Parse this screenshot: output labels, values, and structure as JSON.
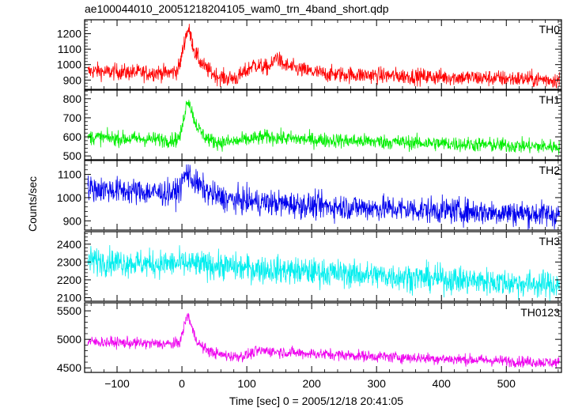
{
  "chart_data": {
    "type": "line",
    "title": "ae100044010_20051218204105_wam0_trn_4band_short.qdp",
    "xlabel": "Time [sec] 0 = 2005/12/18 20:41:05",
    "ylabel": "Counts/sec",
    "xlim": [
      -150,
      585
    ],
    "x_ticks": [
      -100,
      0,
      100,
      200,
      300,
      400,
      500
    ],
    "panels": [
      {
        "name": "TH0",
        "color": "#ff0000",
        "ylim": [
          840,
          1290
        ],
        "y_ticks": [
          900,
          1000,
          1100,
          1200
        ],
        "series": {
          "x": [
            -145,
            -130,
            -115,
            -100,
            -85,
            -70,
            -55,
            -40,
            -25,
            -15,
            -8,
            -3,
            2,
            6,
            10,
            15,
            20,
            28,
            36,
            45,
            55,
            70,
            85,
            100,
            110,
            120,
            130,
            140,
            145,
            155,
            170,
            190,
            220,
            260,
            300,
            350,
            400,
            450,
            500,
            550,
            580
          ],
          "values": [
            955,
            960,
            950,
            955,
            950,
            950,
            945,
            950,
            945,
            950,
            960,
            1000,
            1110,
            1190,
            1230,
            1160,
            1080,
            1020,
            980,
            950,
            925,
            910,
            915,
            960,
            1000,
            990,
            980,
            1000,
            1060,
            1000,
            980,
            960,
            940,
            935,
            930,
            925,
            920,
            915,
            910,
            905,
            900
          ],
          "noise": 38
        }
      },
      {
        "name": "TH1",
        "color": "#00ee00",
        "ylim": [
          480,
          845
        ],
        "y_ticks": [
          500,
          600,
          700,
          800
        ],
        "series": {
          "x": [
            -145,
            -120,
            -90,
            -60,
            -30,
            -10,
            -3,
            2,
            6,
            10,
            14,
            20,
            28,
            36,
            45,
            60,
            80,
            100,
            130,
            150,
            170,
            200,
            250,
            300,
            350,
            400,
            450,
            500,
            550,
            580
          ],
          "values": [
            600,
            595,
            590,
            590,
            585,
            585,
            600,
            680,
            760,
            800,
            750,
            680,
            630,
            600,
            580,
            570,
            575,
            585,
            600,
            595,
            590,
            585,
            580,
            575,
            570,
            565,
            560,
            555,
            550,
            548
          ],
          "noise": 28
        }
      },
      {
        "name": "TH2",
        "color": "#0000ee",
        "ylim": [
          860,
          1160
        ],
        "y_ticks": [
          900,
          1000,
          1100
        ],
        "series": {
          "x": [
            -145,
            -120,
            -90,
            -60,
            -30,
            -10,
            -3,
            2,
            8,
            14,
            22,
            32,
            45,
            60,
            80,
            100,
            120,
            150,
            200,
            250,
            300,
            350,
            400,
            450,
            500,
            550,
            580
          ],
          "values": [
            1040,
            1035,
            1030,
            1025,
            1020,
            1020,
            1040,
            1080,
            1110,
            1085,
            1060,
            1040,
            1015,
            1000,
            990,
            985,
            980,
            975,
            965,
            960,
            955,
            950,
            945,
            940,
            935,
            930,
            925
          ],
          "noise": 40
        }
      },
      {
        "name": "TH3",
        "color": "#00eeee",
        "ylim": [
          2080,
          2470
        ],
        "y_ticks": [
          2100,
          2200,
          2300,
          2400
        ],
        "series": {
          "x": [
            -145,
            -100,
            -50,
            0,
            50,
            100,
            150,
            200,
            250,
            300,
            350,
            400,
            450,
            500,
            550,
            580
          ],
          "values": [
            2310,
            2300,
            2290,
            2290,
            2280,
            2265,
            2255,
            2245,
            2235,
            2225,
            2215,
            2205,
            2195,
            2185,
            2175,
            2170
          ],
          "noise": 55
        }
      },
      {
        "name": "TH0123",
        "color": "#ee00ee",
        "ylim": [
          4420,
          5640
        ],
        "y_ticks": [
          4500,
          5000,
          5500
        ],
        "series": {
          "x": [
            -145,
            -120,
            -90,
            -60,
            -30,
            -10,
            -3,
            2,
            6,
            10,
            14,
            20,
            28,
            36,
            45,
            60,
            80,
            100,
            115,
            130,
            150,
            180,
            220,
            260,
            300,
            350,
            400,
            450,
            500,
            550,
            580
          ],
          "values": [
            4960,
            4950,
            4940,
            4930,
            4920,
            4920,
            4960,
            5150,
            5350,
            5430,
            5250,
            5050,
            4900,
            4830,
            4780,
            4730,
            4700,
            4720,
            4790,
            4800,
            4780,
            4760,
            4740,
            4720,
            4700,
            4680,
            4660,
            4640,
            4620,
            4600,
            4590
          ],
          "noise": 70
        }
      }
    ]
  }
}
